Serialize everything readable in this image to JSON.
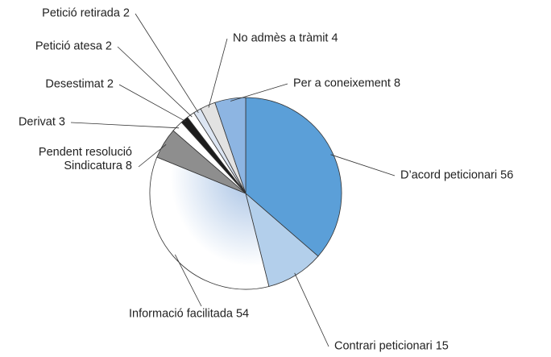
{
  "chart_data": {
    "type": "pie",
    "categories": [
      "D’acord peticionari",
      "Contrari peticionari",
      "Informació facilitada",
      "Pendent resolució Sindicatura",
      "Derivat",
      "Desestimat",
      "Petició atesa",
      "Petició retirada",
      "No admès a tràmit",
      "Per a coneixement"
    ],
    "values": [
      56,
      15,
      54,
      8,
      3,
      2,
      2,
      2,
      4,
      8
    ],
    "colors": [
      "#5b9fd8",
      "#b3cfeb",
      "#a7c2e4",
      "#8e8e8e",
      "#ffffff",
      "#1c1c1c",
      "#ffffff",
      "#dce5f2",
      "#e2e2e2",
      "#8db5e2"
    ]
  }
}
